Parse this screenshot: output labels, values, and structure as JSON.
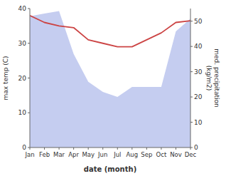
{
  "chart_data": {
    "type": "line",
    "xlabel": "date (month)",
    "ylabel": "max temp (C)",
    "y2label": "med. precipitation\n(kg/m2)",
    "categories": [
      "Jan",
      "Feb",
      "Mar",
      "Apr",
      "May",
      "Jun",
      "Jul",
      "Aug",
      "Sep",
      "Oct",
      "Nov",
      "Dec"
    ],
    "series": [
      {
        "type": "area",
        "axis": "y2",
        "color": "#c5cdf0",
        "values": [
          52,
          53,
          54,
          37,
          26,
          22,
          20,
          24,
          24,
          24,
          46,
          51
        ]
      },
      {
        "type": "line",
        "color": "#cc4444",
        "values": [
          38,
          36,
          35,
          34.5,
          31,
          30,
          29,
          29,
          31,
          33,
          36,
          36.5
        ]
      }
    ],
    "ylim": [
      0,
      40
    ],
    "yticks": [
      0,
      10,
      20,
      30,
      40
    ],
    "y2lim": [
      0,
      55
    ],
    "y2ticks": [
      0,
      10,
      20,
      30,
      40,
      50
    ]
  }
}
